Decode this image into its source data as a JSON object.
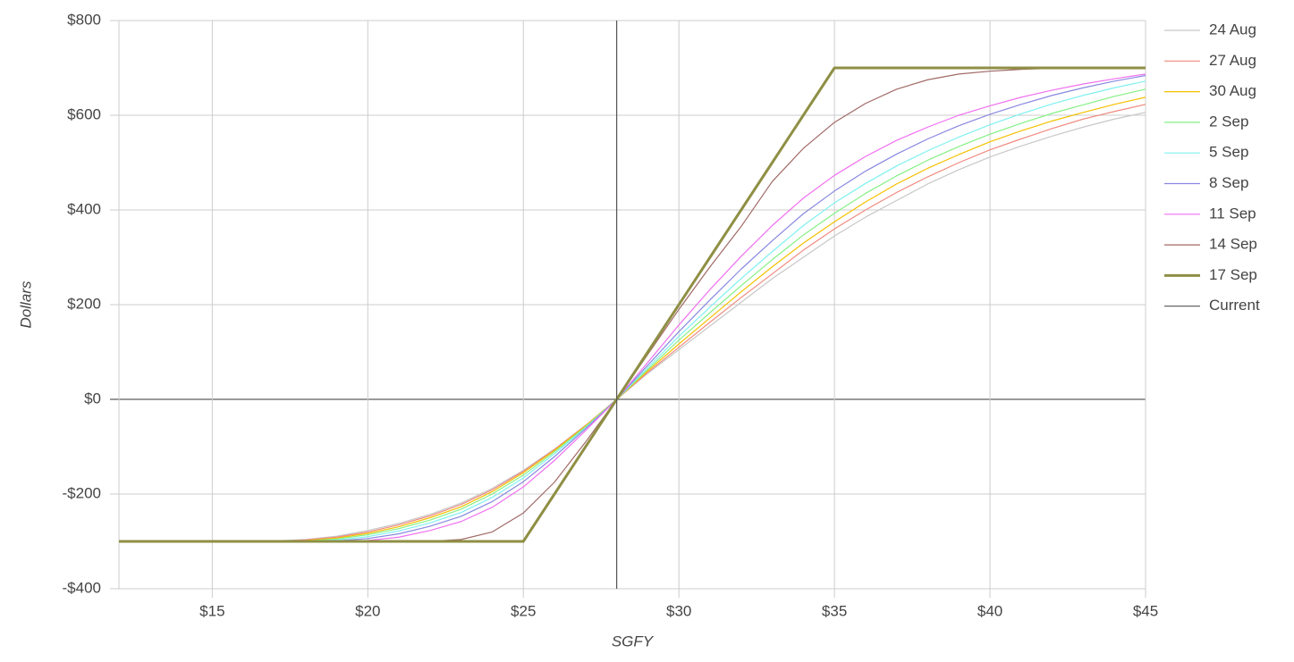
{
  "chart_data": {
    "type": "line",
    "x_label": "SGFY",
    "y_label": "Dollars",
    "x": [
      12,
      13,
      14,
      15,
      16,
      17,
      18,
      19,
      20,
      21,
      22,
      23,
      24,
      25,
      26,
      27,
      28,
      29,
      30,
      31,
      32,
      33,
      34,
      35,
      36,
      37,
      38,
      39,
      40,
      41,
      42,
      43,
      44,
      45
    ],
    "xlim": [
      12,
      45
    ],
    "xticks": [
      {
        "value": 15,
        "label": "$15"
      },
      {
        "value": 20,
        "label": "$20"
      },
      {
        "value": 25,
        "label": "$25"
      },
      {
        "value": 30,
        "label": "$30"
      },
      {
        "value": 35,
        "label": "$35"
      },
      {
        "value": 40,
        "label": "$40"
      },
      {
        "value": 45,
        "label": "$45"
      }
    ],
    "ylim": [
      -400,
      800
    ],
    "yticks": [
      {
        "value": -400,
        "label": "-$400"
      },
      {
        "value": -200,
        "label": "-$200"
      },
      {
        "value": 0,
        "label": "$0"
      },
      {
        "value": 200,
        "label": "$200"
      },
      {
        "value": 400,
        "label": "$400"
      },
      {
        "value": 600,
        "label": "$600"
      },
      {
        "value": 800,
        "label": "$800"
      }
    ],
    "grid": true,
    "legend": "right",
    "series": [
      {
        "name": "24 Aug",
        "color": "#c8c8c8",
        "width": 1.2,
        "values": [
          -300,
          -300,
          -300,
          -300,
          -300,
          -299,
          -296,
          -289,
          -277,
          -262,
          -243,
          -219,
          -188,
          -150,
          -105,
          -55,
          0,
          55,
          105,
          155,
          205,
          255,
          300,
          345,
          385,
          420,
          455,
          485,
          512,
          535,
          556,
          575,
          592,
          606
        ]
      },
      {
        "name": "27 Aug",
        "color": "#f08a80",
        "width": 1.2,
        "values": [
          -300,
          -300,
          -300,
          -300,
          -300,
          -300,
          -297,
          -291,
          -280,
          -265,
          -246,
          -222,
          -191,
          -152,
          -106,
          -55,
          0,
          57,
          110,
          163,
          215,
          265,
          315,
          360,
          400,
          437,
          470,
          500,
          527,
          550,
          572,
          592,
          608,
          623
        ]
      },
      {
        "name": "30 Aug",
        "color": "#f5c000",
        "width": 1.2,
        "values": [
          -300,
          -300,
          -300,
          -300,
          -300,
          -300,
          -298,
          -293,
          -283,
          -269,
          -250,
          -227,
          -195,
          -155,
          -108,
          -56,
          0,
          60,
          117,
          172,
          227,
          280,
          330,
          375,
          417,
          455,
          488,
          517,
          544,
          567,
          588,
          606,
          623,
          638
        ]
      },
      {
        "name": "2 Sep",
        "color": "#86f086",
        "width": 1.2,
        "values": [
          -300,
          -300,
          -300,
          -300,
          -300,
          -300,
          -299,
          -295,
          -286,
          -273,
          -255,
          -232,
          -200,
          -160,
          -111,
          -58,
          0,
          63,
          125,
          183,
          240,
          295,
          347,
          393,
          435,
          472,
          505,
          534,
          560,
          583,
          604,
          622,
          640,
          655
        ]
      },
      {
        "name": "5 Sep",
        "color": "#80f0f0",
        "width": 1.2,
        "values": [
          -300,
          -300,
          -300,
          -300,
          -300,
          -300,
          -300,
          -297,
          -290,
          -278,
          -261,
          -239,
          -207,
          -166,
          -115,
          -60,
          0,
          67,
          133,
          195,
          255,
          312,
          367,
          415,
          456,
          493,
          525,
          554,
          580,
          603,
          624,
          642,
          658,
          672
        ]
      },
      {
        "name": "8 Sep",
        "color": "#8888e0",
        "width": 1.2,
        "values": [
          -300,
          -300,
          -300,
          -300,
          -300,
          -300,
          -300,
          -299,
          -294,
          -284,
          -268,
          -247,
          -216,
          -174,
          -121,
          -62,
          0,
          72,
          143,
          210,
          275,
          335,
          392,
          440,
          482,
          518,
          550,
          578,
          602,
          623,
          642,
          658,
          672,
          684
        ]
      },
      {
        "name": "11 Sep",
        "color": "#f070f0",
        "width": 1.2,
        "values": [
          -300,
          -300,
          -300,
          -300,
          -300,
          -300,
          -300,
          -300,
          -298,
          -291,
          -277,
          -258,
          -228,
          -185,
          -129,
          -66,
          0,
          78,
          157,
          232,
          302,
          367,
          425,
          473,
          513,
          547,
          575,
          600,
          620,
          638,
          653,
          666,
          677,
          687
        ]
      },
      {
        "name": "14 Sep",
        "color": "#a06a66",
        "width": 1.2,
        "values": [
          -300,
          -300,
          -300,
          -300,
          -300,
          -300,
          -300,
          -300,
          -300,
          -300,
          -300,
          -296,
          -280,
          -240,
          -175,
          -90,
          0,
          95,
          190,
          280,
          365,
          460,
          530,
          585,
          625,
          655,
          675,
          687,
          693,
          697,
          699,
          700,
          700,
          700
        ]
      },
      {
        "name": "17 Sep",
        "color": "#8f8f45",
        "width": 3,
        "values": [
          -300,
          -300,
          -300,
          -300,
          -300,
          -300,
          -300,
          -300,
          -300,
          -300,
          -300,
          -300,
          -300,
          -300,
          -200,
          -100,
          0,
          100,
          200,
          300,
          400,
          500,
          600,
          700,
          700,
          700,
          700,
          700,
          700,
          700,
          700,
          700,
          700,
          700
        ]
      },
      {
        "name": "Current",
        "color": "#555555",
        "width": 1.2,
        "x": [
          28,
          28
        ],
        "values": [
          -400,
          800
        ]
      }
    ]
  }
}
